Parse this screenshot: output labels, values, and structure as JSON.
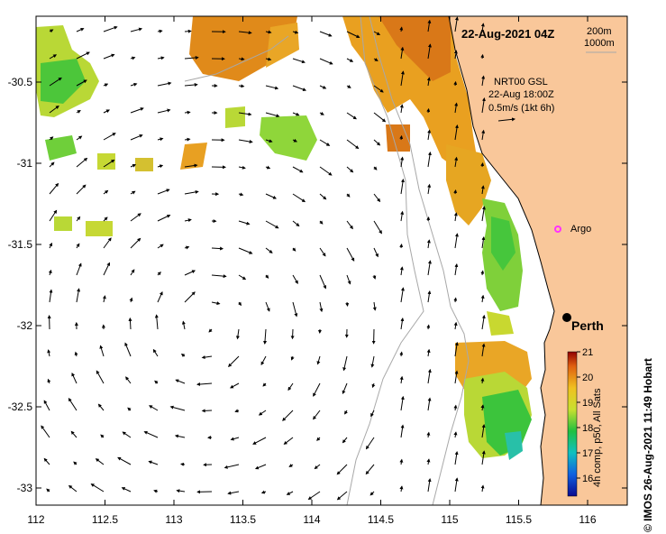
{
  "map": {
    "date_label": "22-Aug-2021 04Z",
    "depth_contours": [
      "200m",
      "1000m"
    ],
    "current_source": "NRT00 GSL",
    "current_time": "22-Aug 18:00Z",
    "current_scale": "0.5m/s (1kt 6h)",
    "places": {
      "argo": "Argo",
      "perth": "Perth"
    },
    "credit": "© IMOS 26-Aug-2021 11:49 Hobart",
    "x_ticks": [
      "112",
      "112.5",
      "113",
      "113.5",
      "114",
      "114.5",
      "115",
      "115.5",
      "116"
    ],
    "y_ticks": [
      "-30.5",
      "-31",
      "-31.5",
      "-32",
      "-32.5",
      "-33"
    ],
    "colorbar": {
      "label": "4h comp, p50, All Sats",
      "ticks": [
        "16",
        "17",
        "18",
        "19",
        "20",
        "21"
      ]
    },
    "colors": {
      "land": "#f9c79a",
      "warm_sst": "#e08a1a",
      "mid_sst": "#c8d830",
      "cool_sst": "#3cc43c",
      "argo_marker": "#ff33ff"
    }
  }
}
